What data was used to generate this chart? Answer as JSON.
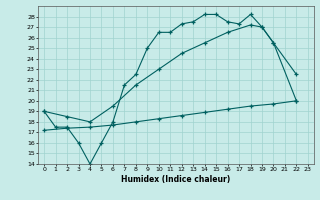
{
  "xlabel": "Humidex (Indice chaleur)",
  "bg_color": "#c8ebe8",
  "grid_color": "#a0d4cf",
  "line_color": "#006060",
  "ylim": [
    14,
    29
  ],
  "xlim": [
    -0.5,
    23.5
  ],
  "yticks": [
    14,
    15,
    16,
    17,
    18,
    19,
    20,
    21,
    22,
    23,
    24,
    25,
    26,
    27,
    28
  ],
  "xticks": [
    0,
    1,
    2,
    3,
    4,
    5,
    6,
    7,
    8,
    9,
    10,
    11,
    12,
    13,
    14,
    15,
    16,
    17,
    18,
    19,
    20,
    21,
    22,
    23
  ],
  "line1_x": [
    0,
    1,
    2,
    3,
    4,
    5,
    6,
    7,
    8,
    9,
    10,
    11,
    12,
    13,
    14,
    15,
    16,
    17,
    18,
    19,
    20,
    22
  ],
  "line1_y": [
    19,
    17.5,
    17.5,
    16,
    14,
    16,
    18.0,
    21.5,
    22.5,
    25.0,
    26.5,
    26.5,
    27.3,
    27.5,
    28.2,
    28.2,
    27.5,
    27.3,
    28.2,
    27.0,
    25.5,
    22.5
  ],
  "line2_x": [
    0,
    2,
    4,
    6,
    8,
    10,
    12,
    14,
    16,
    18,
    19,
    20,
    22
  ],
  "line2_y": [
    19,
    18.5,
    18.0,
    19.5,
    21.5,
    23.0,
    24.5,
    25.5,
    26.5,
    27.2,
    27.0,
    25.5,
    20.0
  ],
  "line3_x": [
    0,
    2,
    4,
    6,
    8,
    10,
    12,
    14,
    16,
    18,
    20,
    22
  ],
  "line3_y": [
    17.2,
    17.4,
    17.5,
    17.7,
    18.0,
    18.3,
    18.6,
    18.9,
    19.2,
    19.5,
    19.7,
    20.0
  ]
}
